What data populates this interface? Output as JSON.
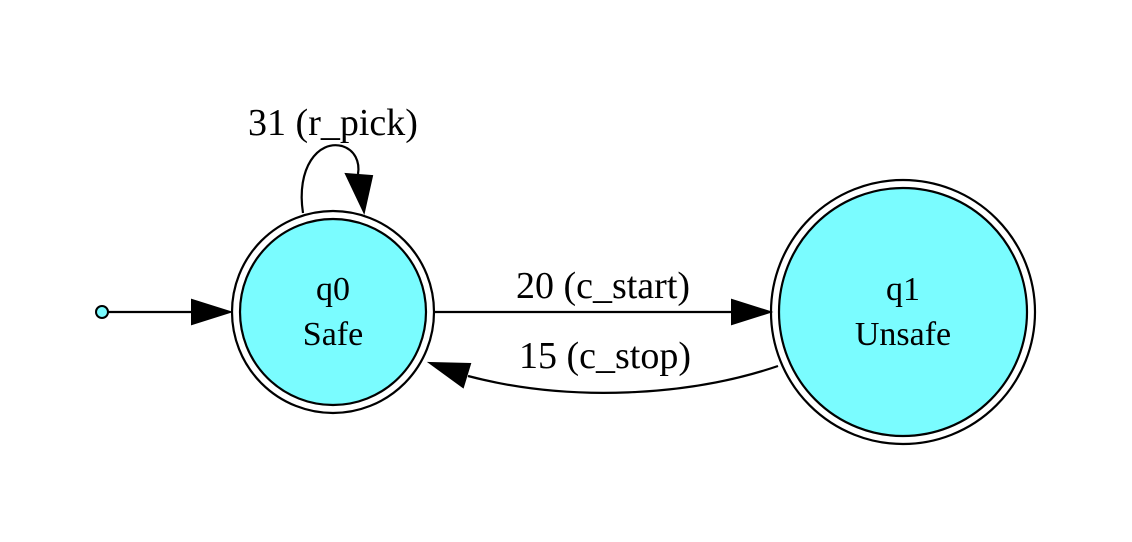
{
  "colors": {
    "state_fill": "#7afcff",
    "initial_dot_fill": "#7afcff",
    "stroke": "#000000",
    "background": "#ffffff"
  },
  "states": [
    {
      "id": "q0",
      "name": "q0",
      "label": "Safe",
      "accepting": true,
      "initial": true
    },
    {
      "id": "q1",
      "name": "q1",
      "label": "Unsafe",
      "accepting": true,
      "initial": false
    }
  ],
  "transitions": [
    {
      "from": "q0",
      "to": "q0",
      "label": "31 (r_pick)"
    },
    {
      "from": "q0",
      "to": "q1",
      "label": "20 (c_start)"
    },
    {
      "from": "q1",
      "to": "q0",
      "label": "15 (c_stop)"
    }
  ]
}
